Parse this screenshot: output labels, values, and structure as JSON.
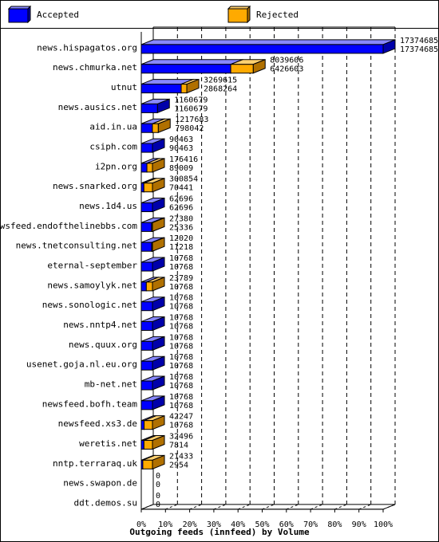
{
  "legend": {
    "accepted": {
      "label": "Accepted",
      "color": "#0000ff",
      "icon": "blue-cube-icon"
    },
    "rejected": {
      "label": "Rejected",
      "color": "#ffaa00",
      "icon": "orange-cube-icon"
    }
  },
  "chart_data": {
    "type": "bar",
    "orientation": "horizontal",
    "title": "Outgoing feeds (innfeed) by Volume",
    "x_ticks": [
      "0%",
      "10%",
      "20%",
      "30%",
      "40%",
      "50%",
      "60%",
      "70%",
      "80%",
      "90%",
      "100%"
    ],
    "xlim": [
      0,
      100
    ],
    "max_value": 17374685,
    "categories": [
      "news.hispagatos.org",
      "news.chmurka.net",
      "utnut",
      "news.ausics.net",
      "aid.in.ua",
      "csiph.com",
      "i2pn.org",
      "news.snarked.org",
      "news.1d4.us",
      "newsfeed.endofthelinebbs.com",
      "news.tnetconsulting.net",
      "eternal-september",
      "news.samoylyk.net",
      "news.sonologic.net",
      "news.nntp4.net",
      "news.quux.org",
      "usenet.goja.nl.eu.org",
      "mb-net.net",
      "newsfeed.bofh.team",
      "newsfeed.xs3.de",
      "weretis.net",
      "nntp.terraraq.uk",
      "news.swapon.de",
      "ddt.demos.su"
    ],
    "series": [
      {
        "name": "Rejected",
        "values": [
          17374685,
          8039606,
          3269615,
          1160679,
          1217683,
          90463,
          176416,
          300854,
          62696,
          27380,
          12020,
          10768,
          23789,
          10768,
          10768,
          10768,
          10768,
          10768,
          10768,
          42247,
          32496,
          21433,
          0,
          0
        ]
      },
      {
        "name": "Accepted",
        "values": [
          17374685,
          6426603,
          2868264,
          1160679,
          798042,
          90463,
          89009,
          70441,
          62696,
          25336,
          11218,
          10768,
          10768,
          10768,
          10768,
          10768,
          10768,
          10768,
          10768,
          10768,
          7814,
          2954,
          0,
          0
        ]
      }
    ],
    "grid": true,
    "legend_position": "top"
  }
}
